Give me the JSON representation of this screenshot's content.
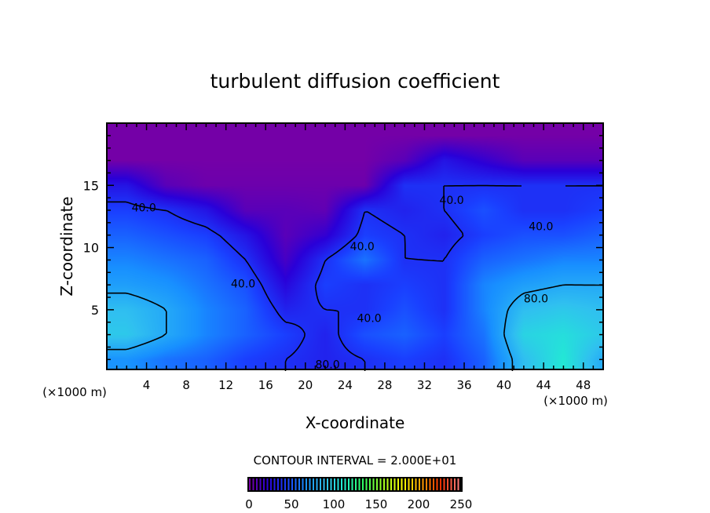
{
  "chart_data": {
    "type": "heatmap",
    "title": "turbulent diffusion coefficient",
    "xlabel": "X-coordinate",
    "ylabel": "Z-coordinate",
    "x_unit_left": "(×1000 m)",
    "x_unit_right": "(×1000 m)",
    "xlim": [
      0,
      50
    ],
    "ylim": [
      0.2,
      20
    ],
    "x_ticks": [
      4,
      8,
      12,
      16,
      20,
      24,
      28,
      32,
      36,
      40,
      44,
      48
    ],
    "y_ticks": [
      5,
      10,
      15
    ],
    "contour_interval_text": "CONTOUR INTERVAL = 2.000E+01",
    "contour_levels": [
      40,
      80
    ],
    "contour_labels": [
      {
        "text": "40.0",
        "x": 2.5,
        "z": 12.9
      },
      {
        "text": "40.0",
        "x": 12.5,
        "z": 6.8
      },
      {
        "text": "40.0",
        "x": 24.5,
        "z": 9.8
      },
      {
        "text": "40.0",
        "x": 33.5,
        "z": 13.5
      },
      {
        "text": "40.0",
        "x": 42.5,
        "z": 11.4
      },
      {
        "text": "40.0",
        "x": 25.2,
        "z": 4.0
      },
      {
        "text": "80.0",
        "x": 42.0,
        "z": 5.6
      },
      {
        "text": "80.0",
        "x": 21.0,
        "z": 0.3
      }
    ],
    "grid": {
      "x": [
        2,
        6,
        10,
        14,
        18,
        22,
        26,
        30,
        34,
        38,
        42,
        46,
        50
      ],
      "z": [
        1,
        3,
        5,
        7,
        9,
        11,
        13,
        15,
        17,
        19
      ],
      "values": [
        [
          70,
          60,
          55,
          45,
          40,
          35,
          40,
          45,
          40,
          55,
          90,
          110,
          80
        ],
        [
          95,
          80,
          65,
          55,
          45,
          35,
          50,
          55,
          45,
          60,
          100,
          105,
          95
        ],
        [
          90,
          80,
          65,
          55,
          35,
          40,
          40,
          50,
          40,
          65,
          90,
          95,
          90
        ],
        [
          75,
          70,
          60,
          50,
          25,
          45,
          40,
          45,
          40,
          65,
          75,
          80,
          80
        ],
        [
          65,
          60,
          55,
          40,
          15,
          40,
          60,
          40,
          40,
          55,
          60,
          65,
          65
        ],
        [
          55,
          50,
          45,
          30,
          10,
          20,
          45,
          40,
          35,
          45,
          50,
          50,
          55
        ],
        [
          45,
          40,
          30,
          10,
          10,
          8,
          40,
          35,
          40,
          50,
          40,
          40,
          45
        ],
        [
          30,
          10,
          5,
          5,
          5,
          5,
          5,
          40,
          40,
          40,
          40,
          40,
          40
        ],
        [
          3,
          3,
          3,
          3,
          3,
          3,
          3,
          10,
          30,
          20,
          10,
          10,
          10
        ],
        [
          3,
          3,
          3,
          3,
          3,
          3,
          3,
          3,
          3,
          3,
          3,
          3,
          3
        ]
      ]
    },
    "colorbar": {
      "min": 0,
      "max": 250,
      "ticks": [
        "0",
        "50",
        "100",
        "150",
        "200",
        "250"
      ],
      "colors": [
        "#7f00a0",
        "#2a00d8",
        "#1a40ff",
        "#1890ff",
        "#30c0f0",
        "#20f0d0",
        "#30ff60",
        "#a0ff20",
        "#ffff00",
        "#ffa000",
        "#ff3000",
        "#ff8080"
      ]
    }
  }
}
